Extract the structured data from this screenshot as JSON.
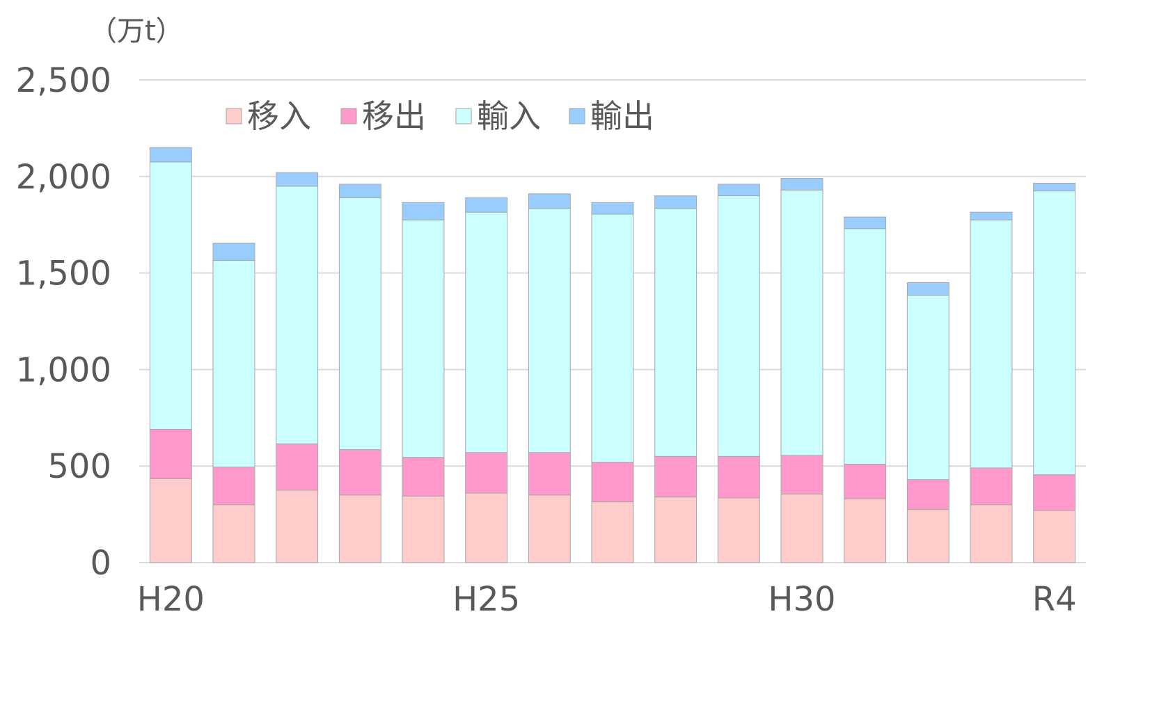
{
  "chart_data": {
    "type": "bar",
    "stacked": true,
    "unit_label": "（万t）",
    "x_tick_labels": [
      "H20",
      "",
      "",
      "",
      "",
      "H25",
      "",
      "",
      "",
      "",
      "H30",
      "",
      "",
      "",
      "R4"
    ],
    "ylim": [
      0,
      2500
    ],
    "y_ticks": [
      0,
      500,
      1000,
      1500,
      2000,
      2500
    ],
    "y_tick_labels": [
      "0",
      "500",
      "1,000",
      "1,500",
      "2,000",
      "2,500"
    ],
    "grid": true,
    "legend_position": "top",
    "series": [
      {
        "name": "移入",
        "color": "#ffcccc",
        "values": [
          435,
          300,
          375,
          350,
          345,
          360,
          350,
          315,
          340,
          335,
          355,
          330,
          275,
          300,
          270
        ]
      },
      {
        "name": "移出",
        "color": "#ff99cc",
        "values": [
          255,
          195,
          240,
          235,
          200,
          210,
          220,
          205,
          210,
          215,
          200,
          180,
          155,
          190,
          185
        ]
      },
      {
        "name": "輸入",
        "color": "#ccffff",
        "values": [
          1385,
          1070,
          1335,
          1305,
          1230,
          1245,
          1265,
          1285,
          1285,
          1350,
          1375,
          1220,
          955,
          1285,
          1470
        ]
      },
      {
        "name": "輸出",
        "color": "#99ccff",
        "values": [
          75,
          90,
          70,
          70,
          90,
          75,
          75,
          60,
          65,
          60,
          60,
          60,
          65,
          40,
          40
        ]
      }
    ]
  }
}
